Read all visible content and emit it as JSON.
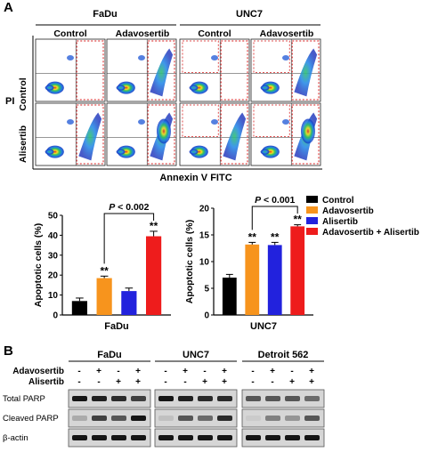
{
  "panel_a_label": "A",
  "panel_b_label": "B",
  "flow": {
    "cell_lines": [
      "FaDu",
      "UNC7"
    ],
    "col_labels": [
      "Control",
      "Adavosertib",
      "Control",
      "Adavosertib"
    ],
    "row_labels": [
      "Control",
      "Alisertib"
    ],
    "y_axis_label": "PI",
    "x_axis_label": "Annexin V FITC"
  },
  "chart_data": [
    {
      "type": "bar",
      "title": "",
      "xlabel": "FaDu",
      "ylabel": "Apoptotic cells (%)",
      "ylim": [
        0,
        50
      ],
      "yticks": [
        0,
        10,
        20,
        30,
        40,
        50
      ],
      "categories": [
        "Control",
        "Adavosertib",
        "Alisertib",
        "Adavosertib + Alisertib"
      ],
      "values": [
        7,
        18.5,
        12,
        39.5
      ],
      "errors": [
        1.5,
        1.0,
        1.5,
        2.5
      ],
      "significance": [
        "",
        "**",
        "",
        "**"
      ],
      "comparison": {
        "from": 1,
        "to": 3,
        "label": "P < 0.002"
      }
    },
    {
      "type": "bar",
      "title": "",
      "xlabel": "UNC7",
      "ylabel": "Apoptotic cells (%)",
      "ylim": [
        0,
        20
      ],
      "yticks": [
        0,
        5,
        10,
        15,
        20
      ],
      "categories": [
        "Control",
        "Adavosertib",
        "Alisertib",
        "Adavosertib + Alisertib"
      ],
      "values": [
        7,
        13.2,
        13.1,
        16.6
      ],
      "errors": [
        0.6,
        0.4,
        0.5,
        0.3
      ],
      "significance": [
        "",
        "**",
        "**",
        "**"
      ],
      "comparison": {
        "from": 1,
        "to": 3,
        "label": "P < 0.001"
      }
    }
  ],
  "legend": [
    {
      "label": "Control",
      "color": "#000000"
    },
    {
      "label": "Adavosertib",
      "color": "#f7941d"
    },
    {
      "label": "Alisertib",
      "color": "#2222dd"
    },
    {
      "label": "Adavosertib + Alisertib",
      "color": "#ee1c1c"
    }
  ],
  "western": {
    "groups": [
      "FaDu",
      "UNC7",
      "Detroit 562"
    ],
    "row_labels": [
      "Adavosertib",
      "Alisertib"
    ],
    "adavosertib_marks": [
      "-",
      "+",
      "-",
      "+"
    ],
    "alisertib_marks": [
      "-",
      "-",
      "+",
      "+"
    ],
    "bands": [
      "Total PARP",
      "Cleaved PARP",
      "β-actin"
    ]
  }
}
